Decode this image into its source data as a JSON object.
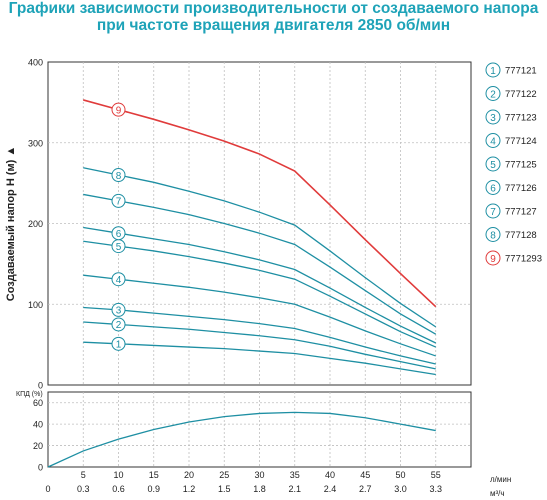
{
  "title": {
    "line1": "Графики зависимости производительности от создаваемого напора",
    "line2": "при частоте вращения двигателя 2850 об/мин"
  },
  "colors": {
    "teal": "#1e8fa3",
    "red": "#e03b3b",
    "grid": "#bfbfbf"
  },
  "chart_data": [
    {
      "type": "line",
      "ylabel": "Создаваемый напор H (м) ▲",
      "ylim": [
        0,
        400
      ],
      "yticks": [
        0,
        100,
        200,
        300,
        400
      ],
      "xlim": [
        0,
        60
      ],
      "xticks_lmin": [
        5,
        10,
        15,
        20,
        25,
        30,
        35,
        40,
        45,
        50,
        55
      ],
      "xticks_m3h": [
        "0",
        "0.3",
        "0.6",
        "0.9",
        "1.2",
        "1.5",
        "1.8",
        "2.1",
        "2.4",
        "2.7",
        "3.0",
        "3.3"
      ],
      "xunit_lmin": "л/мин",
      "xunit_m3h": "м³/ч",
      "grid": true,
      "legend_position": "right",
      "x": [
        5,
        10,
        15,
        20,
        25,
        30,
        35,
        40,
        45,
        50,
        55
      ],
      "series": [
        {
          "name": "777121",
          "marker": "1",
          "marker_x": 10,
          "values": [
            53,
            51,
            49,
            47,
            45,
            42,
            39,
            33,
            27,
            20,
            13
          ]
        },
        {
          "name": "777122",
          "marker": "2",
          "marker_x": 10,
          "values": [
            78,
            75,
            72,
            69,
            65,
            61,
            56,
            48,
            38,
            29,
            20
          ]
        },
        {
          "name": "777123",
          "marker": "3",
          "marker_x": 10,
          "values": [
            96,
            93,
            89,
            85,
            81,
            76,
            70,
            59,
            47,
            36,
            26
          ]
        },
        {
          "name": "777124",
          "marker": "4",
          "marker_x": 10,
          "values": [
            136,
            131,
            126,
            121,
            115,
            108,
            100,
            84,
            67,
            51,
            36
          ]
        },
        {
          "name": "777125",
          "marker": "5",
          "marker_x": 10,
          "values": [
            178,
            172,
            166,
            159,
            151,
            142,
            131,
            110,
            88,
            66,
            47
          ]
        },
        {
          "name": "777126",
          "marker": "6",
          "marker_x": 10,
          "values": [
            195,
            188,
            181,
            174,
            165,
            155,
            143,
            120,
            96,
            73,
            52
          ]
        },
        {
          "name": "777127",
          "marker": "7",
          "marker_x": 10,
          "values": [
            236,
            228,
            220,
            211,
            200,
            188,
            174,
            146,
            117,
            88,
            63
          ]
        },
        {
          "name": "777128",
          "marker": "8",
          "marker_x": 10,
          "values": [
            269,
            260,
            251,
            240,
            228,
            214,
            198,
            166,
            133,
            101,
            72
          ]
        },
        {
          "name": "7771293",
          "marker": "9",
          "marker_x": 10,
          "values": [
            353,
            341,
            329,
            316,
            302,
            286,
            265,
            223,
            180,
            138,
            97
          ]
        }
      ]
    },
    {
      "type": "line",
      "ylabel": "КПД (%)",
      "ylim": [
        0,
        70
      ],
      "yticks": [
        0,
        20,
        40,
        60
      ],
      "xlim": [
        0,
        60
      ],
      "grid": true,
      "x": [
        0,
        5,
        10,
        15,
        20,
        25,
        30,
        35,
        40,
        45,
        50,
        55
      ],
      "series": [
        {
          "name": "КПД",
          "values": [
            0,
            15,
            26,
            35,
            42,
            47,
            50,
            51,
            50,
            46,
            40,
            34
          ]
        }
      ]
    }
  ]
}
